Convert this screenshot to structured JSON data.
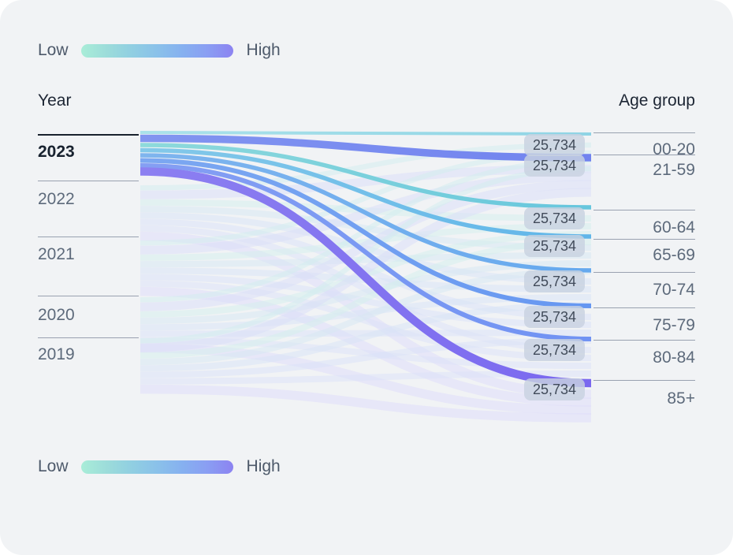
{
  "legend": {
    "low_label": "Low",
    "high_label": "High",
    "gradient_colors": [
      "#a9edd8",
      "#9cdcda",
      "#90cee2",
      "#8ac0ea",
      "#86b0f0",
      "#8a9ef3",
      "#8c83f1"
    ]
  },
  "left_axis": {
    "title": "Year",
    "items": [
      {
        "label": "2023",
        "selected": true
      },
      {
        "label": "2022",
        "selected": false
      },
      {
        "label": "2021",
        "selected": false
      },
      {
        "label": "2020",
        "selected": false
      },
      {
        "label": "2019",
        "selected": false
      }
    ]
  },
  "right_axis": {
    "title": "Age group",
    "items": [
      "00-20",
      "21-59",
      "60-64",
      "65-69",
      "70-74",
      "75-79",
      "80-84",
      "85+"
    ]
  },
  "chart_data": {
    "type": "sankey",
    "source_axis": "Year",
    "target_axis": "Age group",
    "selected_source": "2023",
    "sources": [
      "2023",
      "2022",
      "2021",
      "2020",
      "2019"
    ],
    "targets": [
      "00-20",
      "21-59",
      "60-64",
      "65-69",
      "70-74",
      "75-79",
      "80-84",
      "85+"
    ],
    "color_scale": {
      "low": "#a9edd8",
      "high": "#8c83f1"
    },
    "flows": [
      {
        "source": "2023",
        "target": "00-20",
        "value": 25734,
        "value_label": "25,734",
        "color_left": "#abe2ea",
        "color_right": "#8fd4e5"
      },
      {
        "source": "2023",
        "target": "21-59",
        "value": 25734,
        "value_label": "25,734",
        "color_left": "#8295f0",
        "color_right": "#7183ef"
      },
      {
        "source": "2023",
        "target": "60-64",
        "value": 25734,
        "value_label": "25,734",
        "color_left": "#8edadb",
        "color_right": "#66c6dd"
      },
      {
        "source": "2023",
        "target": "65-69",
        "value": 25734,
        "value_label": "25,734",
        "color_left": "#84c9e9",
        "color_right": "#60b5e9"
      },
      {
        "source": "2023",
        "target": "70-74",
        "value": 25734,
        "value_label": "25,734",
        "color_left": "#7fb5ee",
        "color_right": "#66a9ee"
      },
      {
        "source": "2023",
        "target": "75-79",
        "value": 25734,
        "value_label": "25,734",
        "color_left": "#7ca8f1",
        "color_right": "#6697f1"
      },
      {
        "source": "2023",
        "target": "80-84",
        "value": 25734,
        "value_label": "25,734",
        "color_left": "#859ff3",
        "color_right": "#7092f3"
      },
      {
        "source": "2023",
        "target": "85+",
        "value": 25734,
        "value_label": "25,734",
        "color_left": "#8c80f1",
        "color_right": "#7a68ef"
      }
    ]
  }
}
